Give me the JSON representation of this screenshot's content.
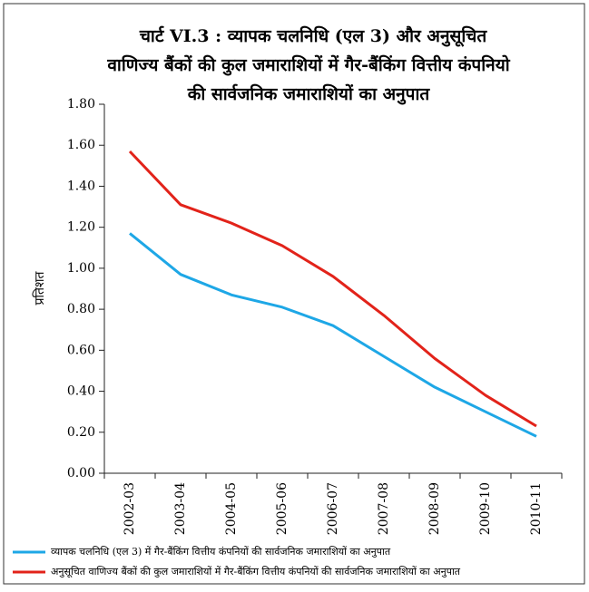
{
  "chart_data": {
    "type": "line",
    "title": [
      "चार्ट VI.3 : व्यापक चलनिधि (एल 3) और अनुसूचित",
      "वाणिज्य बैंकों की कुल जमाराशियों में गैर-बैंकिंग वित्तीय कंपनियो",
      "की सार्वजनिक जमाराशियों का अनुपात"
    ],
    "y_label": "प्रतिशत",
    "categories": [
      "2002-03",
      "2003-04",
      "2004-05",
      "2005-06",
      "2006-07",
      "2007-08",
      "2008-09",
      "2009-10",
      "2010-11"
    ],
    "series": [
      {
        "name": "व्यापक चलनिधि (एल 3) में गैर-बैंकिंग वित्तीय कंपनियों की सार्वजनिक जमाराशियों का अनुपात",
        "color": "#1ea7e6",
        "values": [
          1.17,
          0.97,
          0.87,
          0.81,
          0.72,
          0.57,
          0.42,
          0.3,
          0.18
        ]
      },
      {
        "name": "अनुसूचित वाणिज्य बैंकों की कुल जमाराशियों में गैर-बैंकिंग वित्तीय कंपनियों की सार्वजनिक जमाराशियों का अनुपात",
        "color": "#e2231a",
        "values": [
          1.57,
          1.31,
          1.22,
          1.11,
          0.96,
          0.77,
          0.56,
          0.38,
          0.23
        ]
      }
    ],
    "ylim": [
      0,
      1.8
    ],
    "yticks": [
      {
        "value": 0,
        "label": "0.00"
      },
      {
        "value": 0.2,
        "label": "0.20"
      },
      {
        "value": 0.4,
        "label": "0.40"
      },
      {
        "value": 0.6,
        "label": "0.60"
      },
      {
        "value": 0.8,
        "label": "0.80"
      },
      {
        "value": 1.0,
        "label": "1.00"
      },
      {
        "value": 1.2,
        "label": "1.20"
      },
      {
        "value": 1.4,
        "label": "1.40"
      },
      {
        "value": 1.6,
        "label": "1.60"
      },
      {
        "value": 1.8,
        "label": "1.80"
      }
    ]
  }
}
